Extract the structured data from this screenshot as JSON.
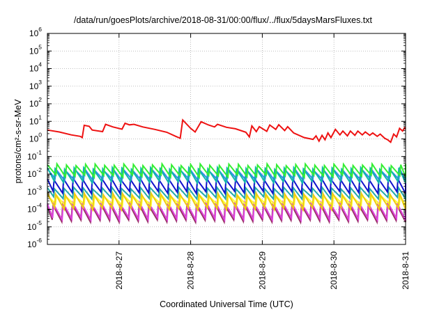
{
  "chart_data": {
    "type": "line",
    "title": "/data/run/goesPlots/archive/2018-08-31/00:00/flux/../flux/5daysMarsFluxes.txt",
    "xlabel": "Coordinated Universal Time (UTC)",
    "ylabel": "protons/cm²-s-sr-MeV",
    "y_scale": "log",
    "ylim": [
      1e-06,
      1000000.0
    ],
    "xlim": [
      "2018-08-26T00:00",
      "2018-08-31T00:00"
    ],
    "grid": true,
    "legend": "none",
    "y_ticks": [
      {
        "base": "10",
        "exp": "-6"
      },
      {
        "base": "10",
        "exp": "-5"
      },
      {
        "base": "10",
        "exp": "-4"
      },
      {
        "base": "10",
        "exp": "-3"
      },
      {
        "base": "10",
        "exp": "-2"
      },
      {
        "base": "10",
        "exp": "-1"
      },
      {
        "base": "10",
        "exp": "0"
      },
      {
        "base": "10",
        "exp": "1"
      },
      {
        "base": "10",
        "exp": "2"
      },
      {
        "base": "10",
        "exp": "3"
      },
      {
        "base": "10",
        "exp": "4"
      },
      {
        "base": "10",
        "exp": "5"
      },
      {
        "base": "10",
        "exp": "6"
      }
    ],
    "x_ticks": [
      {
        "label": "2018-8-27",
        "x": "2018-08-27T00:00"
      },
      {
        "label": "2018-8-28",
        "x": "2018-08-28T00:00"
      },
      {
        "label": "2018-8-29",
        "x": "2018-08-29T00:00"
      },
      {
        "label": "2018-8-30",
        "x": "2018-08-30T00:00"
      },
      {
        "label": "2018-8-31",
        "x": "2018-08-31T00:00"
      }
    ],
    "series": [
      {
        "color": "#ee1111",
        "points": [
          [
            "2018-08-26T00:00",
            3.2
          ],
          [
            "2018-08-26T04:00",
            2.5
          ],
          [
            "2018-08-26T08:00",
            1.7
          ],
          [
            "2018-08-26T11:00",
            1.4
          ],
          [
            "2018-08-26T11:40",
            1.2
          ],
          [
            "2018-08-26T12:20",
            6.0
          ],
          [
            "2018-08-26T14:00",
            5.2
          ],
          [
            "2018-08-26T15:00",
            3.2
          ],
          [
            "2018-08-26T18:30",
            2.6
          ],
          [
            "2018-08-26T19:30",
            6.8
          ],
          [
            "2018-08-26T22:00",
            4.8
          ],
          [
            "2018-08-27T01:00",
            3.6
          ],
          [
            "2018-08-27T02:00",
            7.8
          ],
          [
            "2018-08-27T03:30",
            6.3
          ],
          [
            "2018-08-27T05:00",
            6.8
          ],
          [
            "2018-08-27T08:00",
            4.8
          ],
          [
            "2018-08-27T12:00",
            3.5
          ],
          [
            "2018-08-27T16:00",
            2.4
          ],
          [
            "2018-08-27T19:00",
            1.4
          ],
          [
            "2018-08-27T20:30",
            1.1
          ],
          [
            "2018-08-27T21:20",
            12.0
          ],
          [
            "2018-08-28T00:00",
            4.0
          ],
          [
            "2018-08-28T01:30",
            2.5
          ],
          [
            "2018-08-28T03:30",
            9.5
          ],
          [
            "2018-08-28T06:00",
            6.2
          ],
          [
            "2018-08-28T08:00",
            4.8
          ],
          [
            "2018-08-28T09:00",
            6.8
          ],
          [
            "2018-08-28T12:00",
            4.6
          ],
          [
            "2018-08-28T15:00",
            3.8
          ],
          [
            "2018-08-28T18:30",
            2.4
          ],
          [
            "2018-08-28T19:40",
            1.3
          ],
          [
            "2018-08-28T20:30",
            5.5
          ],
          [
            "2018-08-28T22:00",
            2.6
          ],
          [
            "2018-08-28T23:00",
            5.0
          ],
          [
            "2018-08-29T01:30",
            2.7
          ],
          [
            "2018-08-29T02:30",
            6.2
          ],
          [
            "2018-08-29T04:30",
            3.5
          ],
          [
            "2018-08-29T05:30",
            6.4
          ],
          [
            "2018-08-29T07:30",
            3.0
          ],
          [
            "2018-08-29T08:30",
            5.0
          ],
          [
            "2018-08-29T10:30",
            2.2
          ],
          [
            "2018-08-29T14:00",
            1.2
          ],
          [
            "2018-08-29T17:00",
            0.95
          ],
          [
            "2018-08-29T18:00",
            1.5
          ],
          [
            "2018-08-29T19:00",
            0.75
          ],
          [
            "2018-08-29T20:00",
            1.6
          ],
          [
            "2018-08-29T21:00",
            0.9
          ],
          [
            "2018-08-29T22:00",
            2.2
          ],
          [
            "2018-08-29T23:00",
            1.2
          ],
          [
            "2018-08-30T00:30",
            3.5
          ],
          [
            "2018-08-30T02:00",
            1.7
          ],
          [
            "2018-08-30T03:00",
            2.8
          ],
          [
            "2018-08-30T04:30",
            1.5
          ],
          [
            "2018-08-30T05:30",
            2.8
          ],
          [
            "2018-08-30T07:00",
            1.6
          ],
          [
            "2018-08-30T08:00",
            2.8
          ],
          [
            "2018-08-30T09:30",
            1.7
          ],
          [
            "2018-08-30T10:30",
            2.5
          ],
          [
            "2018-08-30T12:00",
            1.6
          ],
          [
            "2018-08-30T13:00",
            2.2
          ],
          [
            "2018-08-30T14:30",
            1.4
          ],
          [
            "2018-08-30T15:30",
            1.9
          ],
          [
            "2018-08-30T17:00",
            1.1
          ],
          [
            "2018-08-30T18:00",
            0.9
          ],
          [
            "2018-08-30T19:00",
            0.65
          ],
          [
            "2018-08-30T20:00",
            1.9
          ],
          [
            "2018-08-30T21:00",
            1.3
          ],
          [
            "2018-08-30T22:00",
            4.0
          ],
          [
            "2018-08-30T23:00",
            2.8
          ],
          [
            "2018-08-30T23:40",
            4.3
          ],
          [
            "2018-08-31T00:00",
            3.6
          ]
        ]
      },
      {
        "color": "#33ee33",
        "pattern": {
          "low": 0.0078,
          "high": 0.034,
          "offset_h": 0.0
        }
      },
      {
        "color": "#11b8aa",
        "pattern": {
          "low": 0.0036,
          "high": 0.021,
          "offset_h": 0.2
        }
      },
      {
        "color": "#3388ee",
        "pattern": {
          "low": 0.0048,
          "high": 0.018,
          "offset_h": 0.1
        }
      },
      {
        "color": "#1111cc",
        "pattern": {
          "low": 0.00092,
          "high": 0.0052,
          "offset_h": 0.3
        }
      },
      {
        "color": "#22aaaa",
        "pattern": {
          "low": 0.00045,
          "high": 0.0016,
          "offset_h": 0.25
        }
      },
      {
        "color": "#eecc11",
        "pattern": {
          "low": 0.00011,
          "high": 0.00075,
          "offset_h": 0.15
        }
      },
      {
        "color": "#ffff33",
        "pattern": {
          "low": 0.00018,
          "high": 0.00058,
          "offset_h": 0.05
        }
      },
      {
        "color": "#dd44dd",
        "pattern": {
          "low": 2.8e-05,
          "high": 0.00022,
          "offset_h": 0.35
        }
      },
      {
        "color": "#993366",
        "pattern": {
          "low": 2.2e-05,
          "high": 0.00018,
          "offset_h": 0.4
        }
      }
    ],
    "sawtooth_period_hours": 3.2
  }
}
